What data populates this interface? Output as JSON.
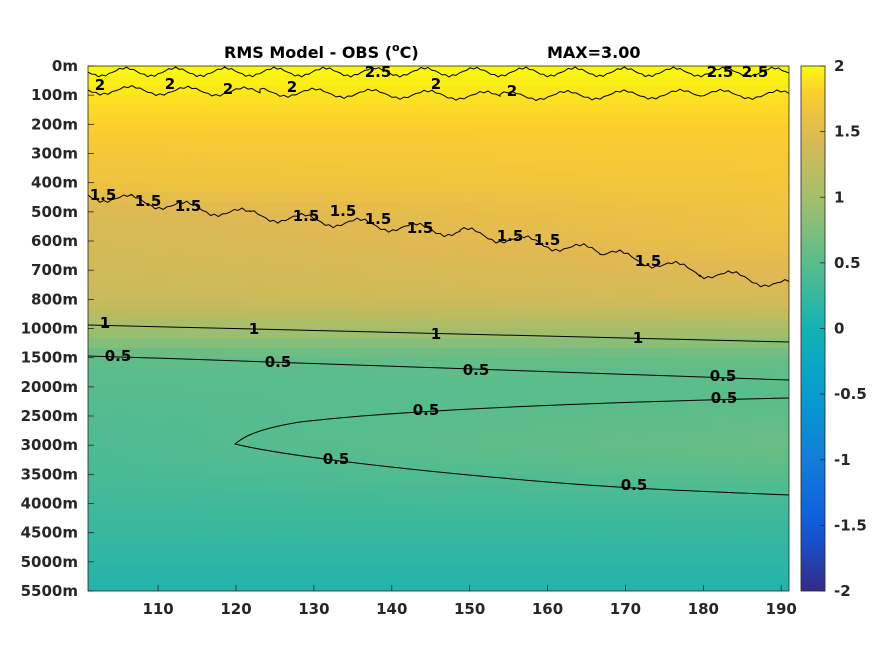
{
  "chart_data": {
    "type": "heatmap",
    "title": "RMS Model - OBS (",
    "title_unit": "C)",
    "title_unit_sup": "o",
    "max_label": "MAX=3.00",
    "xlabel": "",
    "ylabel": "",
    "x_ticks": [
      "110",
      "120",
      "130",
      "140",
      "150",
      "160",
      "170",
      "180",
      "190"
    ],
    "x_tick_values": [
      110,
      120,
      130,
      140,
      150,
      160,
      170,
      180,
      190
    ],
    "xlim": [
      101,
      191
    ],
    "y_ticks": [
      "0m",
      "100m",
      "200m",
      "300m",
      "400m",
      "500m",
      "600m",
      "700m",
      "800m",
      "1000m",
      "1500m",
      "2000m",
      "2500m",
      "3000m",
      "3500m",
      "4000m",
      "4500m",
      "5000m",
      "5500m"
    ],
    "colorbar": {
      "ticks": [
        "2",
        "1.5",
        "1",
        "0.5",
        "0",
        "-0.5",
        "-1",
        "-1.5",
        "-2"
      ],
      "values": [
        2,
        1.5,
        1,
        0.5,
        0,
        -0.5,
        -1,
        -1.5,
        -2
      ],
      "range": [
        -2,
        2
      ],
      "colormap": "parula"
    },
    "field_profile": {
      "depth_index": [
        0,
        1,
        2,
        3,
        4,
        5,
        6,
        7,
        8,
        9,
        10,
        11,
        12,
        13,
        14,
        15,
        16,
        17,
        18
      ],
      "rms_west": [
        2.0,
        1.9,
        1.8,
        1.7,
        1.65,
        1.45,
        1.4,
        1.35,
        1.3,
        1.0,
        0.55,
        0.48,
        0.45,
        0.42,
        0.38,
        0.32,
        0.25,
        0.18,
        0.1
      ],
      "rms_east": [
        2.0,
        1.9,
        1.8,
        1.75,
        1.7,
        1.65,
        1.6,
        1.5,
        1.4,
        1.05,
        0.6,
        0.5,
        0.55,
        0.62,
        0.5,
        0.35,
        0.25,
        0.18,
        0.1
      ]
    },
    "contours": [
      {
        "level": "2.5",
        "labels": [
          "2.5",
          "2.5",
          "2.5"
        ]
      },
      {
        "level": "2",
        "labels": [
          "2",
          "2",
          "2",
          "2",
          "2",
          "2"
        ]
      },
      {
        "level": "1.5",
        "labels": [
          "1.5",
          "1.5",
          "1.5",
          "1.5",
          "1.5",
          "1.5",
          "1.5",
          "1.5",
          "1.5",
          "1.5"
        ]
      },
      {
        "level": "1",
        "labels": [
          "1",
          "1",
          "1",
          "1"
        ]
      },
      {
        "level": "0.5",
        "labels": [
          "0.5",
          "0.5",
          "0.5",
          "0.5",
          "0.5",
          "0.5",
          "0.5",
          "0.5"
        ]
      }
    ]
  }
}
